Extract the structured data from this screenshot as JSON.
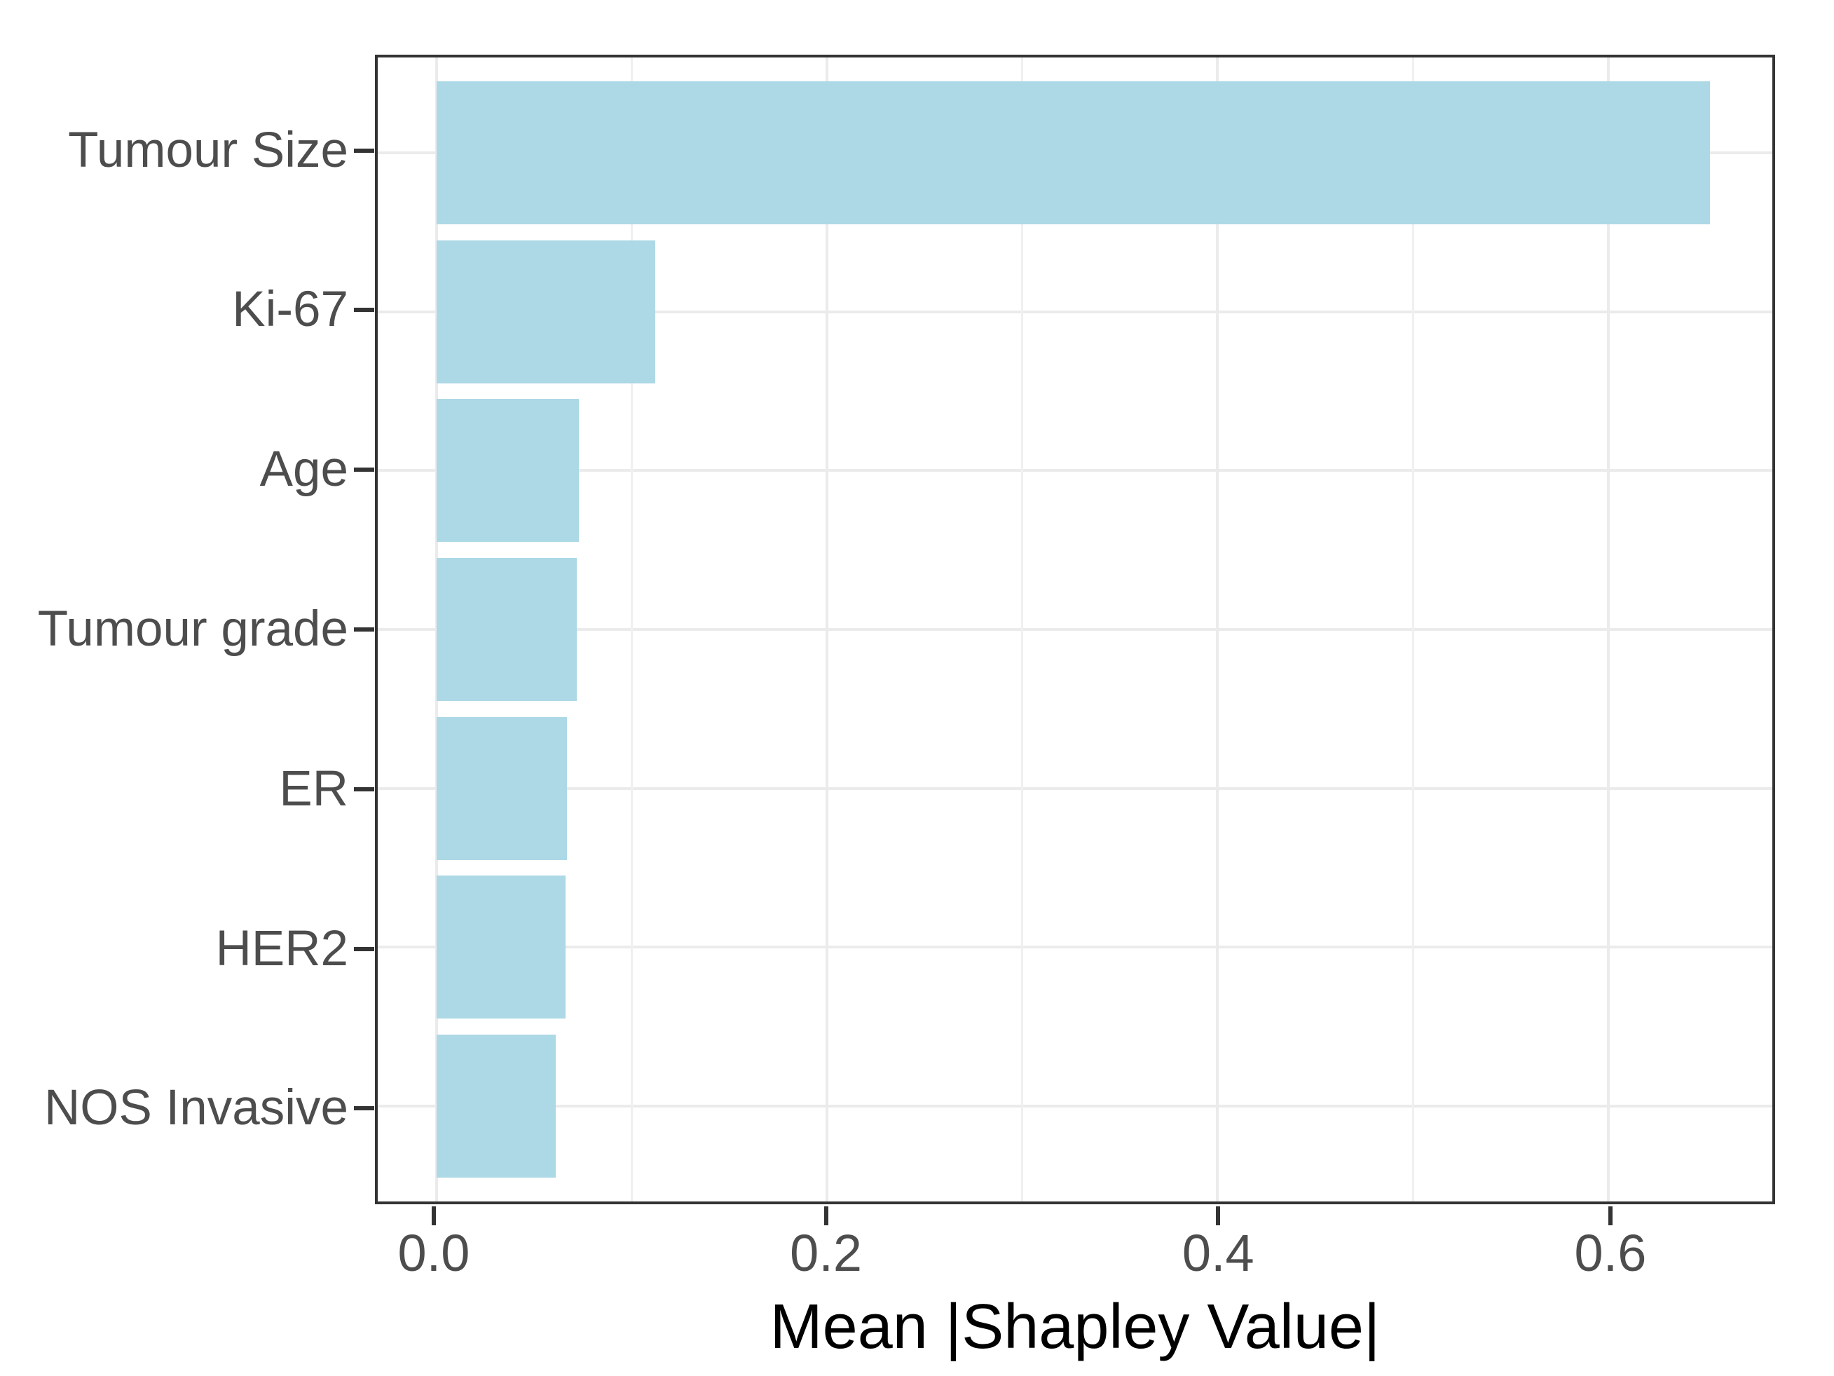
{
  "chart_data": {
    "type": "bar",
    "orientation": "horizontal",
    "title": "",
    "xlabel": "Mean |Shapley Value|",
    "ylabel": "",
    "categories": [
      "Tumour Size",
      "Ki-67",
      "Age",
      "Tumour grade",
      "ER",
      "HER2",
      "NOS Invasive"
    ],
    "values": [
      0.652,
      0.112,
      0.073,
      0.072,
      0.067,
      0.066,
      0.061
    ],
    "x_axis": {
      "range": [
        -0.03,
        0.684
      ],
      "major_ticks": [
        0.0,
        0.2,
        0.4,
        0.6
      ],
      "tick_labels": [
        "0.0",
        "0.2",
        "0.4",
        "0.6"
      ],
      "minor_ticks": [
        0.1,
        0.3,
        0.5
      ]
    },
    "grid": true,
    "legend": false,
    "colors": {
      "bar_fill": "#ADD8E6",
      "panel_border": "#333333",
      "grid_major": "#EBEBEB",
      "grid_minor": "#F0F0F0",
      "axis_tick": "#333333",
      "axis_text": "#4D4D4D",
      "axis_title": "#000000",
      "background": "#FFFFFF"
    }
  }
}
